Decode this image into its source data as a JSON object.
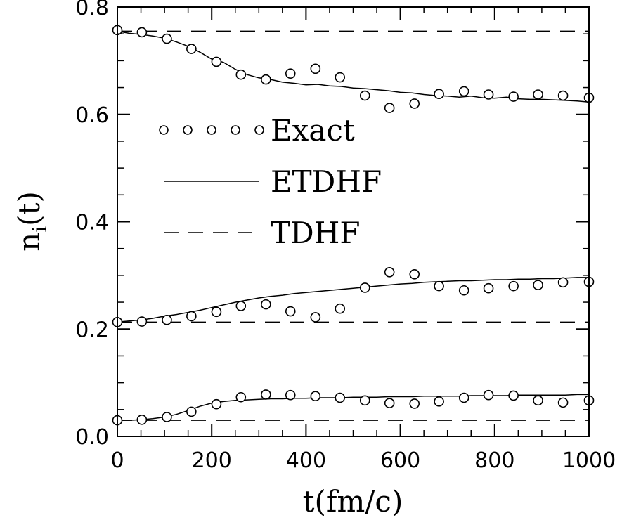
{
  "chart_data": {
    "type": "line",
    "title": "",
    "xlabel": "t(fm/c)",
    "ylabel": {
      "base": "n",
      "sub": "i",
      "tail": "(t)"
    },
    "xlim": [
      0,
      1000
    ],
    "ylim": [
      0,
      0.8
    ],
    "x_ticks": [
      0,
      200,
      400,
      600,
      800,
      1000
    ],
    "y_ticks": [
      0.0,
      0.2,
      0.4,
      0.6,
      0.8
    ],
    "x_tick_labels": [
      "0",
      "200",
      "400",
      "600",
      "800",
      "1000"
    ],
    "y_tick_labels": [
      "0.0",
      "0.2",
      "0.4",
      "0.6",
      "0.8"
    ],
    "grid": false,
    "legend": {
      "placement": "center",
      "entries": [
        {
          "label": "Exact",
          "style": "circles"
        },
        {
          "label": "ETDHF",
          "style": "solid"
        },
        {
          "label": "TDHF",
          "style": "dashed"
        }
      ]
    },
    "series": [
      {
        "name": "Exact",
        "style": "circles",
        "groups": [
          {
            "x": [
              0,
              52,
              105,
              157,
              210,
              262,
              315,
              367,
              420,
              472,
              525,
              577,
              630,
              682,
              735,
              787,
              840,
              892,
              945,
              1000
            ],
            "y": [
              0.757,
              0.753,
              0.741,
              0.722,
              0.698,
              0.674,
              0.665,
              0.676,
              0.685,
              0.669,
              0.635,
              0.612,
              0.62,
              0.638,
              0.643,
              0.637,
              0.633,
              0.637,
              0.635,
              0.631
            ]
          },
          {
            "x": [
              0,
              52,
              105,
              157,
              210,
              262,
              315,
              367,
              420,
              472,
              525,
              577,
              630,
              682,
              735,
              787,
              840,
              892,
              945,
              1000
            ],
            "y": [
              0.213,
              0.214,
              0.217,
              0.224,
              0.232,
              0.243,
              0.246,
              0.233,
              0.222,
              0.238,
              0.277,
              0.306,
              0.302,
              0.28,
              0.272,
              0.276,
              0.28,
              0.282,
              0.287,
              0.288
            ]
          },
          {
            "x": [
              0,
              52,
              105,
              157,
              210,
              262,
              315,
              367,
              420,
              472,
              525,
              577,
              630,
              682,
              735,
              787,
              840,
              892,
              945,
              1000
            ],
            "y": [
              0.03,
              0.031,
              0.036,
              0.046,
              0.06,
              0.073,
              0.078,
              0.077,
              0.075,
              0.072,
              0.067,
              0.062,
              0.061,
              0.065,
              0.072,
              0.077,
              0.076,
              0.067,
              0.063,
              0.067
            ]
          }
        ]
      },
      {
        "name": "ETDHF",
        "style": "solid",
        "groups": [
          {
            "x": [
              0,
              25,
              50,
              75,
              100,
              125,
              150,
              175,
              200,
              225,
              250,
              275,
              300,
              325,
              350,
              375,
              400,
              425,
              450,
              475,
              500,
              525,
              550,
              575,
              600,
              625,
              650,
              675,
              700,
              725,
              750,
              775,
              800,
              825,
              850,
              875,
              900,
              925,
              950,
              975,
              1000
            ],
            "y": [
              0.755,
              0.751,
              0.749,
              0.746,
              0.742,
              0.735,
              0.727,
              0.716,
              0.703,
              0.697,
              0.684,
              0.674,
              0.668,
              0.665,
              0.66,
              0.658,
              0.655,
              0.656,
              0.653,
              0.652,
              0.649,
              0.648,
              0.646,
              0.644,
              0.641,
              0.64,
              0.637,
              0.635,
              0.634,
              0.632,
              0.634,
              0.631,
              0.63,
              0.632,
              0.629,
              0.628,
              0.628,
              0.627,
              0.626,
              0.625,
              0.623
            ]
          },
          {
            "x": [
              0,
              25,
              50,
              75,
              100,
              125,
              150,
              175,
              200,
              225,
              250,
              275,
              300,
              325,
              350,
              375,
              400,
              425,
              450,
              475,
              500,
              525,
              550,
              575,
              600,
              625,
              650,
              675,
              700,
              725,
              750,
              775,
              800,
              825,
              850,
              875,
              900,
              925,
              950,
              975,
              1000
            ],
            "y": [
              0.213,
              0.215,
              0.217,
              0.22,
              0.224,
              0.227,
              0.231,
              0.235,
              0.24,
              0.245,
              0.25,
              0.254,
              0.258,
              0.261,
              0.263,
              0.266,
              0.268,
              0.27,
              0.272,
              0.274,
              0.276,
              0.278,
              0.28,
              0.282,
              0.284,
              0.285,
              0.287,
              0.288,
              0.289,
              0.29,
              0.29,
              0.291,
              0.292,
              0.292,
              0.293,
              0.293,
              0.294,
              0.294,
              0.295,
              0.296,
              0.296
            ]
          },
          {
            "x": [
              0,
              25,
              50,
              75,
              100,
              125,
              150,
              175,
              200,
              225,
              250,
              275,
              300,
              325,
              350,
              375,
              400,
              425,
              450,
              475,
              500,
              525,
              550,
              575,
              600,
              625,
              650,
              675,
              700,
              725,
              750,
              775,
              800,
              825,
              850,
              875,
              900,
              925,
              950,
              975,
              1000
            ],
            "y": [
              0.03,
              0.03,
              0.031,
              0.033,
              0.036,
              0.041,
              0.048,
              0.056,
              0.062,
              0.065,
              0.067,
              0.068,
              0.069,
              0.07,
              0.07,
              0.071,
              0.071,
              0.072,
              0.072,
              0.072,
              0.073,
              0.073,
              0.073,
              0.074,
              0.074,
              0.074,
              0.075,
              0.075,
              0.075,
              0.075,
              0.076,
              0.076,
              0.076,
              0.076,
              0.077,
              0.077,
              0.077,
              0.077,
              0.077,
              0.078,
              0.078
            ]
          }
        ]
      },
      {
        "name": "TDHF",
        "style": "dashed",
        "levels": [
          0.755,
          0.213,
          0.03
        ]
      }
    ]
  }
}
